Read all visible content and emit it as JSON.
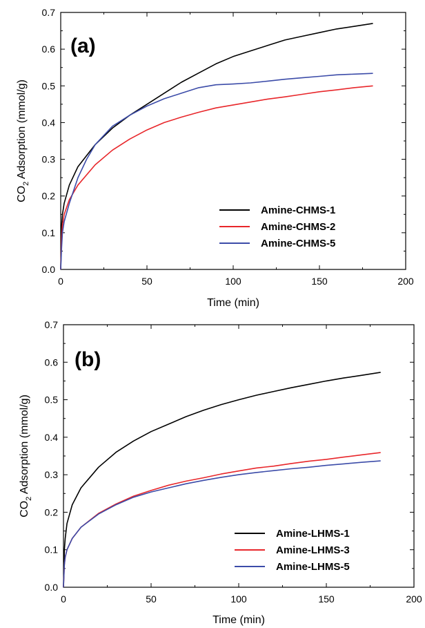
{
  "chart_data": [
    {
      "type": "line",
      "panel_label": "(a)",
      "xlabel": "Time (min)",
      "ylabel_prefix": "CO",
      "ylabel_subscript": "2",
      "ylabel_suffix": " Adsorption (mmol/g)",
      "xlim": [
        0,
        200
      ],
      "ylim": [
        0,
        0.7
      ],
      "xticks": [
        0,
        50,
        100,
        150,
        200
      ],
      "yticks": [
        0.0,
        0.1,
        0.2,
        0.3,
        0.4,
        0.5,
        0.6,
        0.7
      ],
      "xtick_labels": [
        "0",
        "50",
        "100",
        "150",
        "200"
      ],
      "ytick_labels": [
        "0.0",
        "0.1",
        "0.2",
        "0.3",
        "0.4",
        "0.5",
        "0.6",
        "0.7"
      ],
      "legend_position": "bottom-right",
      "grid": false,
      "series": [
        {
          "name": "Amine-CHMS-1",
          "color": "#000000",
          "x": [
            0,
            0.5,
            1,
            2,
            5,
            10,
            20,
            30,
            40,
            50,
            60,
            70,
            80,
            90,
            100,
            110,
            120,
            130,
            140,
            150,
            160,
            170,
            181
          ],
          "y": [
            0,
            0.12,
            0.15,
            0.18,
            0.23,
            0.28,
            0.34,
            0.385,
            0.42,
            0.45,
            0.48,
            0.51,
            0.535,
            0.56,
            0.58,
            0.595,
            0.61,
            0.625,
            0.635,
            0.645,
            0.655,
            0.662,
            0.67
          ]
        },
        {
          "name": "Amine-CHMS-2",
          "color": "#e8262a",
          "x": [
            0,
            0.5,
            1,
            2,
            5,
            10,
            20,
            30,
            40,
            50,
            60,
            70,
            80,
            90,
            100,
            110,
            120,
            130,
            140,
            150,
            160,
            170,
            181
          ],
          "y": [
            0,
            0.09,
            0.12,
            0.15,
            0.19,
            0.23,
            0.285,
            0.325,
            0.355,
            0.38,
            0.4,
            0.415,
            0.428,
            0.44,
            0.448,
            0.456,
            0.464,
            0.47,
            0.477,
            0.484,
            0.489,
            0.495,
            0.5
          ]
        },
        {
          "name": "Amine-CHMS-5",
          "color": "#3b4ba8",
          "x": [
            0,
            0.5,
            1,
            2,
            5,
            10,
            15,
            20,
            30,
            40,
            50,
            60,
            70,
            80,
            90,
            100,
            110,
            120,
            130,
            140,
            150,
            160,
            170,
            181
          ],
          "y": [
            0,
            0.06,
            0.1,
            0.13,
            0.18,
            0.25,
            0.3,
            0.34,
            0.39,
            0.42,
            0.445,
            0.465,
            0.48,
            0.495,
            0.503,
            0.505,
            0.508,
            0.513,
            0.518,
            0.522,
            0.526,
            0.53,
            0.532,
            0.534
          ]
        }
      ]
    },
    {
      "type": "line",
      "panel_label": "(b)",
      "xlabel": "Time (min)",
      "ylabel_prefix": "CO",
      "ylabel_subscript": "2",
      "ylabel_suffix": " Adsorption (mmol/g)",
      "xlim": [
        0,
        200
      ],
      "ylim": [
        0,
        0.7
      ],
      "xticks": [
        0,
        50,
        100,
        150,
        200
      ],
      "yticks": [
        0.0,
        0.1,
        0.2,
        0.3,
        0.4,
        0.5,
        0.6,
        0.7
      ],
      "xtick_labels": [
        "0",
        "50",
        "100",
        "150",
        "200"
      ],
      "ytick_labels": [
        "0.0",
        "0.1",
        "0.2",
        "0.3",
        "0.4",
        "0.5",
        "0.6",
        "0.7"
      ],
      "legend_position": "bottom-right",
      "grid": false,
      "series": [
        {
          "name": "Amine-LHMS-1",
          "color": "#000000",
          "x": [
            0,
            0.5,
            1,
            2,
            5,
            10,
            20,
            30,
            40,
            50,
            60,
            70,
            80,
            90,
            100,
            110,
            120,
            130,
            140,
            150,
            160,
            170,
            181
          ],
          "y": [
            0,
            0.1,
            0.13,
            0.17,
            0.22,
            0.265,
            0.32,
            0.36,
            0.39,
            0.415,
            0.435,
            0.455,
            0.472,
            0.487,
            0.5,
            0.512,
            0.522,
            0.532,
            0.541,
            0.55,
            0.558,
            0.565,
            0.573
          ]
        },
        {
          "name": "Amine-LHMS-3",
          "color": "#e8262a",
          "x": [
            0,
            0.5,
            1,
            2,
            5,
            10,
            20,
            30,
            40,
            50,
            60,
            70,
            80,
            90,
            100,
            110,
            120,
            130,
            140,
            150,
            160,
            170,
            181
          ],
          "y": [
            0,
            0.06,
            0.08,
            0.1,
            0.13,
            0.16,
            0.197,
            0.222,
            0.243,
            0.258,
            0.272,
            0.283,
            0.292,
            0.302,
            0.31,
            0.318,
            0.323,
            0.33,
            0.336,
            0.341,
            0.347,
            0.353,
            0.359
          ]
        },
        {
          "name": "Amine-LHMS-5",
          "color": "#3b4ba8",
          "x": [
            0,
            0.5,
            1,
            2,
            5,
            10,
            20,
            30,
            40,
            50,
            60,
            70,
            80,
            90,
            100,
            110,
            120,
            130,
            140,
            150,
            160,
            170,
            181
          ],
          "y": [
            0,
            0.06,
            0.08,
            0.1,
            0.13,
            0.16,
            0.195,
            0.22,
            0.24,
            0.254,
            0.265,
            0.276,
            0.285,
            0.293,
            0.3,
            0.306,
            0.311,
            0.316,
            0.32,
            0.325,
            0.329,
            0.333,
            0.337
          ]
        }
      ]
    }
  ]
}
